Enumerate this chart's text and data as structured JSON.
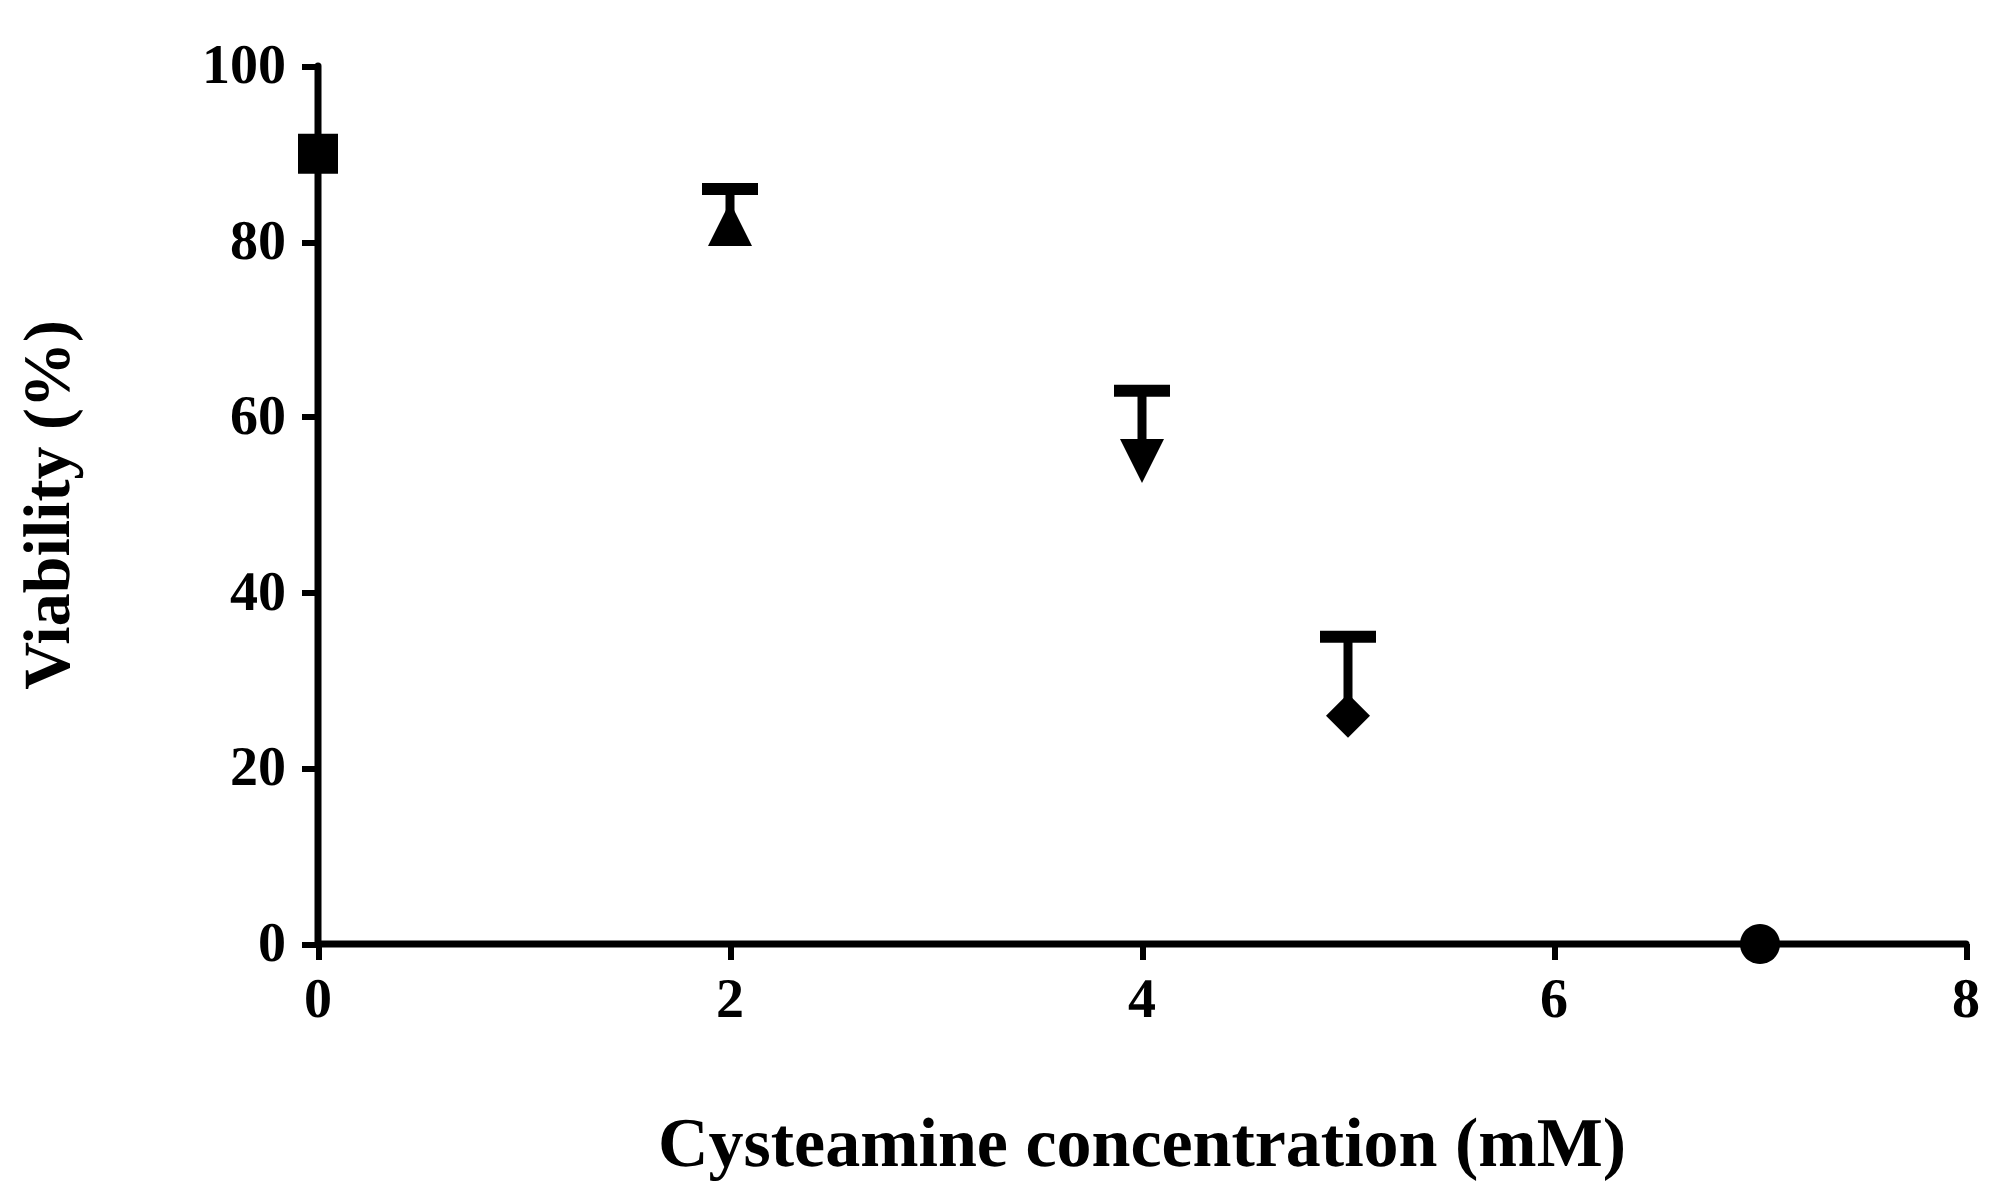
{
  "chart_data": {
    "type": "scatter",
    "xlabel": "Cysteamine concentration (mM)",
    "ylabel": "Viability (%)",
    "series": [
      {
        "x": [
          0
        ],
        "values": [
          90
        ],
        "color": "#000000",
        "marker": "square"
      },
      {
        "x": [
          2
        ],
        "values": [
          82
        ],
        "errors": [
          [
            82,
            86
          ]
        ],
        "color": "#000000",
        "marker": "triangle"
      },
      {
        "x": [
          4
        ],
        "values": [
          55
        ],
        "errors": [
          [
            55,
            63
          ]
        ],
        "color": "#000000",
        "marker": "triangle-down"
      },
      {
        "x": [
          5
        ],
        "values": [
          26
        ],
        "errors": [
          [
            26,
            35
          ]
        ],
        "color": "#000000",
        "marker": "diamond"
      },
      {
        "x": [
          7
        ],
        "values": [
          0
        ],
        "color": "#000000",
        "marker": "circle"
      }
    ],
    "xlim": [
      0,
      8
    ],
    "xticks": [
      0,
      2,
      4,
      6,
      8
    ],
    "ylim": [
      0,
      100
    ],
    "yticks": [
      0,
      20,
      40,
      60,
      80,
      100
    ],
    "grid": false
  }
}
